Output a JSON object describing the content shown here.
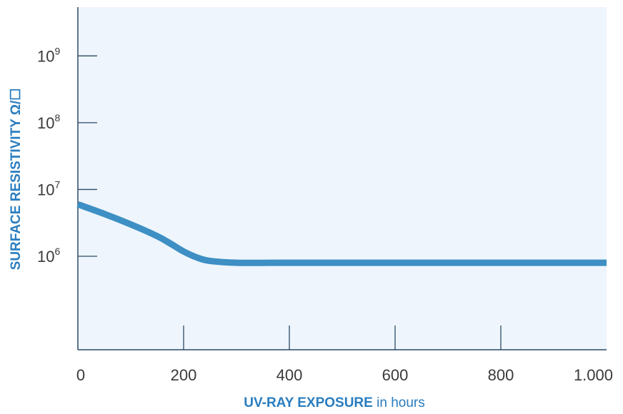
{
  "chart_data": {
    "type": "line",
    "xlabel_bold": "UV-RAY EXPOSURE",
    "xlabel_rest": "in hours",
    "ylabel": "SURFACE RESISTIVITY Ω/☐",
    "x_ticks": [
      {
        "value": 0,
        "label": "0"
      },
      {
        "value": 200,
        "label": "200"
      },
      {
        "value": 400,
        "label": "400"
      },
      {
        "value": 600,
        "label": "600"
      },
      {
        "value": 800,
        "label": "800"
      },
      {
        "value": 1000,
        "label": "1.000"
      }
    ],
    "y_ticks": [
      {
        "value": 1000000,
        "base": "10",
        "exp": "6"
      },
      {
        "value": 10000000,
        "base": "10",
        "exp": "7"
      },
      {
        "value": 100000000,
        "base": "10",
        "exp": "8"
      },
      {
        "value": 1000000000,
        "base": "10",
        "exp": "9"
      }
    ],
    "xlim": [
      0,
      1000
    ],
    "ylim_log10": [
      4.6,
      9.73
    ],
    "y_scale": "log",
    "grid": false,
    "series": [
      {
        "color": "#3d8fc4",
        "x": [
          0,
          50,
          100,
          150,
          175,
          200,
          225,
          250,
          300,
          400,
          600,
          800,
          1000
        ],
        "y": [
          6000000,
          4300000,
          3000000,
          2000000,
          1550000,
          1180000,
          960000,
          850000,
          800000,
          800000,
          800000,
          800000,
          800000
        ]
      }
    ],
    "colors": {
      "plot_background": "#eef5fc",
      "axis": "#2c4a66",
      "line": "#3d8fc4",
      "title": "#2a7dbf"
    }
  }
}
